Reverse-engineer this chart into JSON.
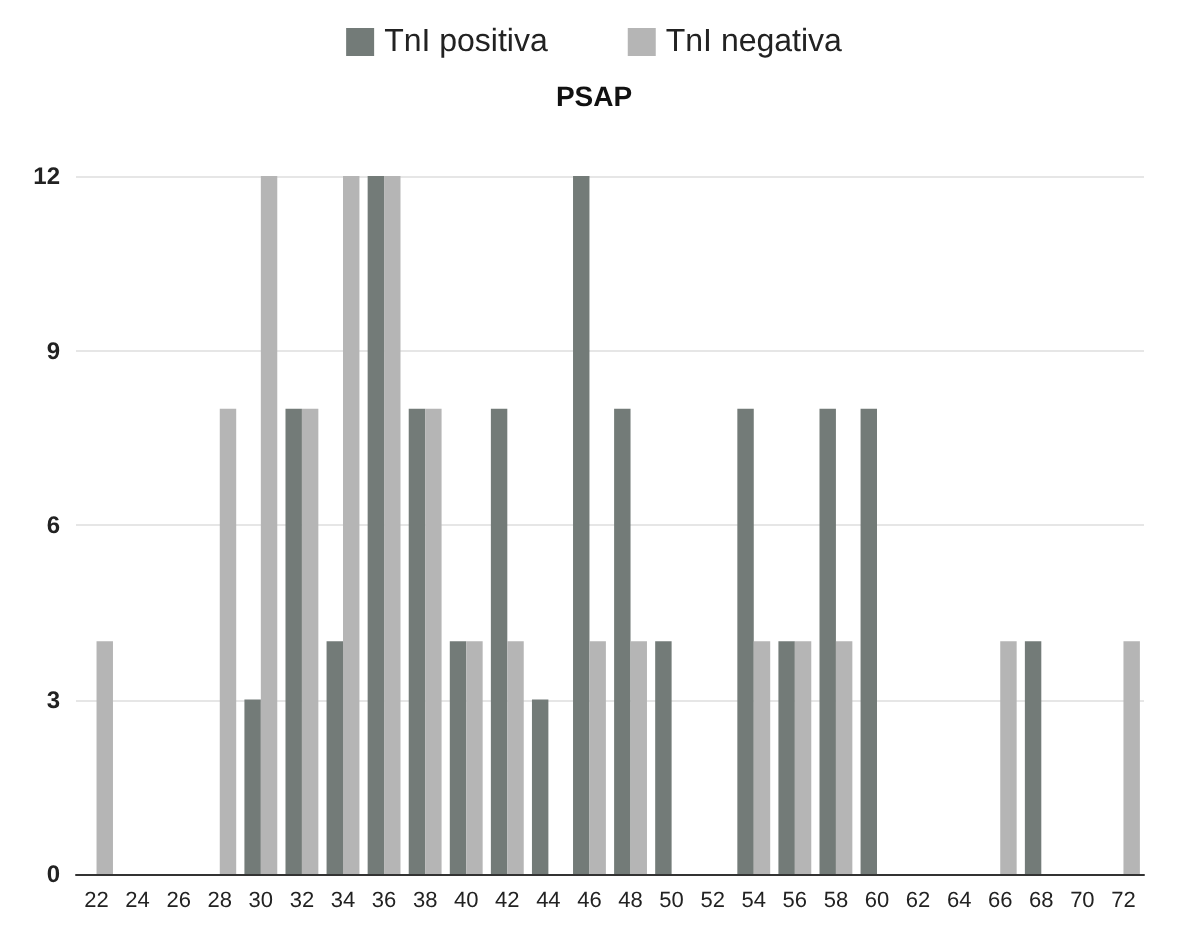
{
  "chart_data": {
    "type": "bar",
    "title": "PSAP",
    "categories": [
      "22",
      "24",
      "26",
      "28",
      "30",
      "32",
      "34",
      "36",
      "38",
      "40",
      "42",
      "44",
      "46",
      "48",
      "50",
      "52",
      "54",
      "56",
      "58",
      "60",
      "62",
      "64",
      "66",
      "68",
      "70",
      "72"
    ],
    "series": [
      {
        "name": "TnI positiva",
        "color": "#737b78",
        "values": [
          0,
          0,
          0,
          0,
          3,
          8,
          4,
          12,
          8,
          4,
          8,
          3,
          12,
          8,
          4,
          0,
          8,
          4,
          8,
          8,
          0,
          0,
          0,
          4,
          0,
          0
        ]
      },
      {
        "name": "TnI negativa",
        "color": "#b5b5b5",
        "values": [
          4,
          0,
          0,
          8,
          12,
          8,
          12,
          12,
          8,
          4,
          4,
          0,
          4,
          4,
          0,
          0,
          4,
          4,
          4,
          0,
          0,
          0,
          4,
          0,
          0,
          4
        ]
      }
    ],
    "ylim": [
      0,
      12
    ],
    "yticks": [
      0,
      3,
      6,
      9,
      12
    ],
    "grid": "y",
    "legend": "top"
  }
}
